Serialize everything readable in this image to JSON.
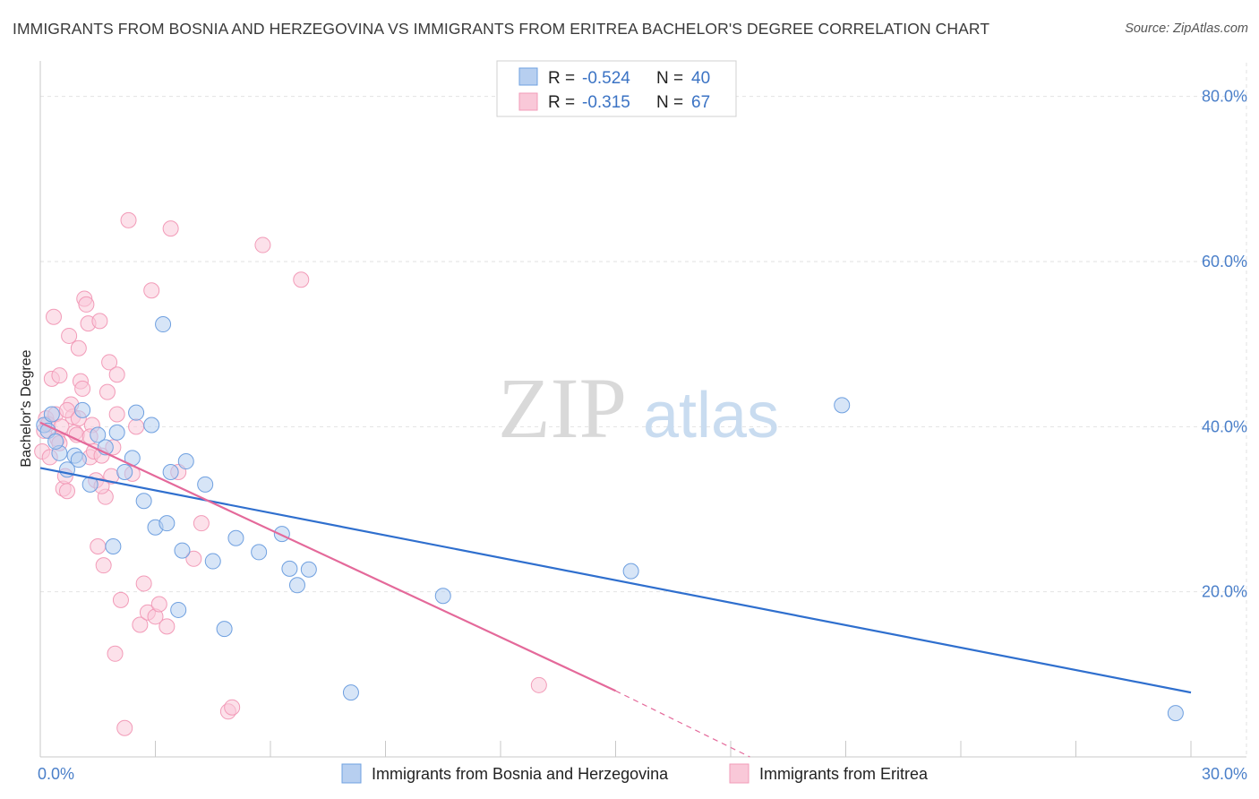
{
  "header": {
    "title": "IMMIGRANTS FROM BOSNIA AND HERZEGOVINA VS IMMIGRANTS FROM ERITREA BACHELOR'S DEGREE CORRELATION CHART",
    "source": "Source: ZipAtlas.com"
  },
  "watermark": {
    "zip": "ZIP",
    "atlas": "atlas"
  },
  "stats": {
    "r_label": "R =",
    "n_label": "N =",
    "rows": [
      {
        "r": "-0.524",
        "n": "40",
        "color": "#6fa0e0"
      },
      {
        "r": "-0.315",
        "n": "67",
        "color": "#f29bb8"
      }
    ]
  },
  "chart_data": {
    "type": "scatter",
    "title": "IMMIGRANTS FROM BOSNIA AND HERZEGOVINA VS IMMIGRANTS FROM ERITREA BACHELOR'S DEGREE CORRELATION CHART",
    "xlabel": "",
    "ylabel": "Bachelor's Degree",
    "xlim": [
      0,
      30
    ],
    "ylim": [
      0,
      83
    ],
    "x_ticks": [
      0,
      30
    ],
    "x_tick_labels": [
      "0.0%",
      "30.0%"
    ],
    "y_ticks": [
      20,
      40,
      60,
      80
    ],
    "y_tick_labels": [
      "20.0%",
      "40.0%",
      "60.0%",
      "80.0%"
    ],
    "grid": true,
    "legend_position": "bottom",
    "series": [
      {
        "name": "Immigrants from Bosnia and Herzegovina",
        "color": "#6fa0e0",
        "fill": "#b7cff0",
        "line_color": "#2f6fce",
        "trend": {
          "x": [
            0,
            30
          ],
          "y": [
            35.0,
            7.8
          ]
        },
        "points": [
          [
            0.1,
            40.2
          ],
          [
            0.2,
            39.5
          ],
          [
            0.3,
            41.5
          ],
          [
            0.5,
            36.8
          ],
          [
            0.7,
            34.8
          ],
          [
            0.9,
            36.5
          ],
          [
            1.1,
            42.0
          ],
          [
            1.3,
            33.0
          ],
          [
            1.5,
            39.0
          ],
          [
            1.7,
            37.5
          ],
          [
            1.9,
            25.5
          ],
          [
            2.0,
            39.3
          ],
          [
            2.2,
            34.5
          ],
          [
            2.4,
            36.2
          ],
          [
            2.5,
            41.7
          ],
          [
            2.7,
            31.0
          ],
          [
            2.9,
            40.2
          ],
          [
            3.0,
            27.8
          ],
          [
            3.2,
            52.4
          ],
          [
            3.3,
            28.3
          ],
          [
            3.4,
            34.5
          ],
          [
            3.6,
            17.8
          ],
          [
            3.7,
            25.0
          ],
          [
            3.8,
            35.8
          ],
          [
            4.3,
            33.0
          ],
          [
            4.5,
            23.7
          ],
          [
            4.8,
            15.5
          ],
          [
            5.1,
            26.5
          ],
          [
            5.7,
            24.8
          ],
          [
            6.3,
            27.0
          ],
          [
            6.5,
            22.8
          ],
          [
            6.7,
            20.8
          ],
          [
            7.0,
            22.7
          ],
          [
            8.1,
            7.8
          ],
          [
            10.5,
            19.5
          ],
          [
            15.4,
            22.5
          ],
          [
            20.9,
            42.6
          ],
          [
            29.6,
            5.3
          ],
          [
            0.4,
            38.2
          ],
          [
            1.0,
            36.0
          ]
        ]
      },
      {
        "name": "Immigrants from Eritrea",
        "color": "#f29bb8",
        "fill": "#f9c8d8",
        "line_color": "#e4699a",
        "trend": {
          "x": [
            0,
            15.0
          ],
          "y": [
            40.5,
            8.0
          ]
        },
        "trend_dashed": {
          "x": [
            15.0,
            18.5
          ],
          "y": [
            8.0,
            0
          ]
        },
        "points": [
          [
            0.05,
            37.0
          ],
          [
            0.1,
            39.5
          ],
          [
            0.15,
            41.0
          ],
          [
            0.2,
            40.3
          ],
          [
            0.3,
            45.8
          ],
          [
            0.35,
            53.3
          ],
          [
            0.4,
            41.5
          ],
          [
            0.45,
            38.5
          ],
          [
            0.5,
            46.2
          ],
          [
            0.55,
            40.0
          ],
          [
            0.6,
            32.5
          ],
          [
            0.65,
            34.0
          ],
          [
            0.7,
            32.2
          ],
          [
            0.75,
            51.0
          ],
          [
            0.8,
            42.7
          ],
          [
            0.85,
            41.2
          ],
          [
            0.9,
            39.3
          ],
          [
            0.95,
            39.0
          ],
          [
            1.0,
            49.5
          ],
          [
            1.05,
            45.5
          ],
          [
            1.1,
            44.6
          ],
          [
            1.15,
            55.5
          ],
          [
            1.2,
            54.8
          ],
          [
            1.25,
            52.5
          ],
          [
            1.3,
            36.3
          ],
          [
            1.35,
            40.2
          ],
          [
            1.4,
            37.0
          ],
          [
            1.45,
            33.5
          ],
          [
            1.5,
            25.5
          ],
          [
            1.55,
            52.8
          ],
          [
            1.6,
            36.5
          ],
          [
            1.65,
            23.2
          ],
          [
            1.7,
            31.5
          ],
          [
            1.75,
            44.2
          ],
          [
            1.8,
            47.8
          ],
          [
            1.85,
            34.0
          ],
          [
            1.9,
            37.5
          ],
          [
            1.95,
            12.5
          ],
          [
            2.0,
            46.3
          ],
          [
            2.1,
            19.0
          ],
          [
            2.2,
            3.5
          ],
          [
            2.3,
            65.0
          ],
          [
            2.4,
            34.3
          ],
          [
            2.5,
            40.0
          ],
          [
            2.6,
            16.0
          ],
          [
            2.7,
            21.0
          ],
          [
            2.8,
            17.5
          ],
          [
            2.9,
            56.5
          ],
          [
            3.0,
            17.0
          ],
          [
            3.1,
            18.5
          ],
          [
            3.3,
            15.8
          ],
          [
            3.4,
            64.0
          ],
          [
            3.6,
            34.5
          ],
          [
            4.0,
            24.0
          ],
          [
            4.2,
            28.3
          ],
          [
            4.9,
            5.5
          ],
          [
            5.0,
            6.0
          ],
          [
            5.8,
            62.0
          ],
          [
            6.8,
            57.8
          ],
          [
            13.0,
            8.7
          ],
          [
            0.25,
            36.3
          ],
          [
            0.5,
            38.0
          ],
          [
            0.7,
            42.0
          ],
          [
            1.0,
            41.0
          ],
          [
            1.3,
            38.8
          ],
          [
            1.6,
            32.8
          ],
          [
            2.0,
            41.5
          ]
        ]
      }
    ]
  }
}
